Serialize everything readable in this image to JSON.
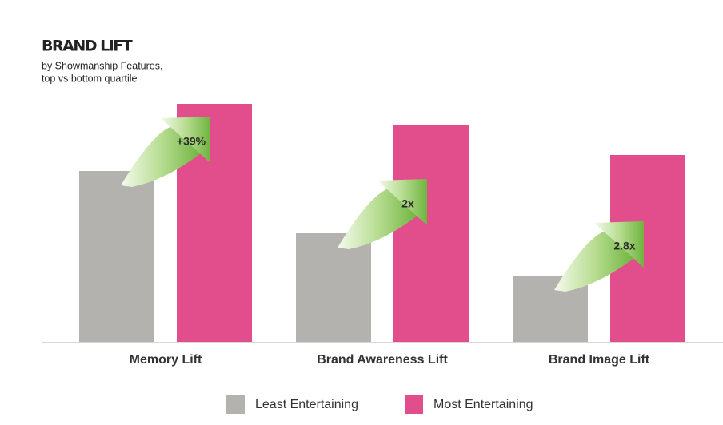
{
  "chart_data": {
    "type": "bar",
    "title": "BRAND LIFT",
    "subtitle": [
      "by Showmanship Features,",
      "top vs bottom quartile"
    ],
    "categories": [
      "Memory Lift",
      "Brand Awareness Lift",
      "Brand Image Lift"
    ],
    "series": [
      {
        "name": "Least Entertaining",
        "color": "#b3b2ae",
        "values": [
          214,
          136,
          83
        ]
      },
      {
        "name": "Most Entertaining",
        "color": "#e24e8c",
        "values": [
          298,
          272,
          234
        ]
      }
    ],
    "annotations": [
      "+39%",
      "2x",
      "2.8x"
    ],
    "ylim": [
      0,
      300
    ]
  }
}
